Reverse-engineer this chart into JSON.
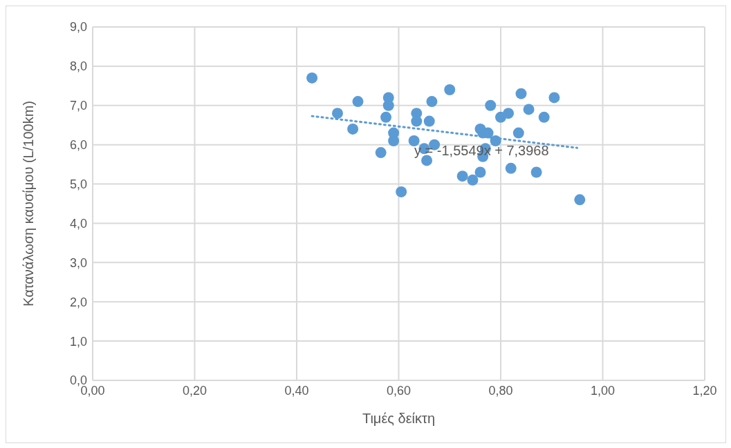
{
  "chart_data": {
    "type": "scatter",
    "xlabel": "Τιμές δείκτη",
    "ylabel": "Κατανάλωση καυσίμου (L/100km)",
    "annotations": [
      "y = -1,5549x + 7,3968"
    ],
    "xlim": [
      0,
      1.2
    ],
    "xticks": [
      {
        "value": 0,
        "label": "0,00"
      },
      {
        "value": 0.2,
        "label": "0,20"
      },
      {
        "value": 0.4,
        "label": "0,40"
      },
      {
        "value": 0.6,
        "label": "0,60"
      },
      {
        "value": 0.8,
        "label": "0,80"
      },
      {
        "value": 1,
        "label": "1,00"
      },
      {
        "value": 1.2,
        "label": "1,20"
      }
    ],
    "ylim": [
      0,
      9
    ],
    "yticks": [
      {
        "value": 0,
        "label": "0,0"
      },
      {
        "value": 1,
        "label": "1,0"
      },
      {
        "value": 2,
        "label": "2,0"
      },
      {
        "value": 3,
        "label": "3,0"
      },
      {
        "value": 4,
        "label": "4,0"
      },
      {
        "value": 5,
        "label": "5,0"
      },
      {
        "value": 6,
        "label": "6,0"
      },
      {
        "value": 7,
        "label": "7,0"
      },
      {
        "value": 8,
        "label": "8,0"
      },
      {
        "value": 9,
        "label": "9,0"
      }
    ],
    "grid": true,
    "marker": "circle",
    "series": [
      {
        "color": "#5b9bd5",
        "x": [
          0.43,
          0.48,
          0.51,
          0.52,
          0.565,
          0.575,
          0.58,
          0.58,
          0.59,
          0.59,
          0.605,
          0.63,
          0.635,
          0.635,
          0.65,
          0.655,
          0.66,
          0.665,
          0.67,
          0.7,
          0.725,
          0.745,
          0.76,
          0.76,
          0.765,
          0.765,
          0.77,
          0.775,
          0.78,
          0.79,
          0.8,
          0.815,
          0.82,
          0.835,
          0.84,
          0.855,
          0.87,
          0.885,
          0.905,
          0.955
        ],
        "values": [
          7.7,
          6.8,
          6.4,
          7.1,
          5.8,
          6.7,
          7.0,
          7.2,
          6.3,
          6.1,
          4.8,
          6.1,
          6.8,
          6.6,
          5.9,
          5.6,
          6.6,
          7.1,
          6.0,
          7.4,
          5.2,
          5.1,
          5.3,
          6.4,
          6.3,
          5.7,
          5.9,
          6.3,
          7.0,
          6.1,
          6.7,
          6.8,
          5.4,
          6.3,
          7.3,
          6.9,
          5.3,
          6.7,
          7.2,
          4.6
        ]
      },
      {
        "type": "line",
        "color": "#5b9bd5",
        "marker": "none",
        "line_style": "dotted",
        "x": [
          0.43,
          0.95
        ],
        "values": [
          6.73,
          5.92
        ]
      }
    ]
  }
}
